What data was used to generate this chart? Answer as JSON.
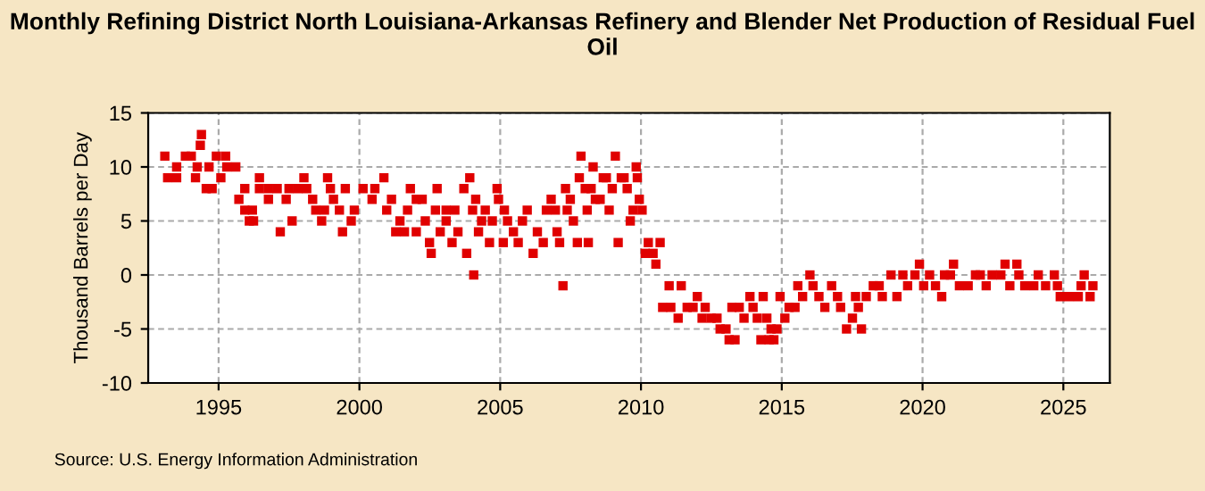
{
  "chart_data": {
    "type": "scatter",
    "title": "Monthly Refining District North Louisiana-Arkansas Refinery and Blender Net Production of Residual Fuel Oil",
    "ylabel": "Thousand Barrels per Day",
    "annotations": [
      "Source: U.S. Energy Information Administration"
    ],
    "xlim": [
      1992.5,
      2026.65
    ],
    "xticks": [
      1995,
      2000,
      2005,
      2010,
      2015,
      2020,
      2025
    ],
    "ylim": [
      -10,
      15
    ],
    "yticks": [
      -10,
      -5,
      0,
      5,
      10,
      15
    ],
    "grid": true,
    "marker": "square",
    "series": [
      {
        "color": "#e00000",
        "x": [
          1993.09,
          1993.19,
          1993.51,
          1993.51,
          1993.82,
          1994.03,
          1994.18,
          1994.24,
          1994.35,
          1994.39,
          1994.56,
          1994.66,
          1994.77,
          1994.92,
          1995.08,
          1995.25,
          1995.29,
          1995.61,
          1995.72,
          1995.93,
          1995.93,
          1996.09,
          1996.2,
          1996.24,
          1996.45,
          1996.45,
          1996.77,
          1996.77,
          1997.08,
          1997.19,
          1997.4,
          1997.5,
          1997.61,
          1997.82,
          1998.03,
          1998.13,
          1998.34,
          1998.45,
          1998.66,
          1998.76,
          1998.87,
          1998.97,
          1999.08,
          1999.29,
          1999.4,
          1999.5,
          1999.71,
          1999.82,
          2000.13,
          2000.45,
          2000.55,
          2000.87,
          2000.97,
          2001.14,
          2001.29,
          2001.44,
          2001.6,
          2001.71,
          2001.81,
          2002.02,
          2002.02,
          2002.23,
          2002.34,
          2002.49,
          2002.55,
          2002.7,
          2002.76,
          2002.87,
          2003.08,
          2003.08,
          2003.29,
          2003.39,
          2003.5,
          2003.71,
          2003.81,
          2003.92,
          2004.02,
          2004.06,
          2004.13,
          2004.23,
          2004.34,
          2004.47,
          2004.62,
          2004.72,
          2004.89,
          2004.94,
          2005.11,
          2005.15,
          2005.26,
          2005.47,
          2005.64,
          2005.79,
          2005.96,
          2006.17,
          2006.32,
          2006.53,
          2006.64,
          2006.81,
          2006.96,
          2007.02,
          2007.11,
          2007.23,
          2007.32,
          2007.38,
          2007.49,
          2007.6,
          2007.74,
          2007.81,
          2007.87,
          2008.02,
          2008.09,
          2008.13,
          2008.23,
          2008.3,
          2008.38,
          2008.55,
          2008.66,
          2008.77,
          2008.87,
          2008.98,
          2009.09,
          2009.19,
          2009.3,
          2009.4,
          2009.51,
          2009.62,
          2009.72,
          2009.83,
          2009.87,
          2009.94,
          2010.04,
          2010.15,
          2010.26,
          2010.43,
          2010.53,
          2010.68,
          2010.77,
          2011.0,
          2011.06,
          2011.32,
          2011.43,
          2011.64,
          2011.85,
          2012.0,
          2012.17,
          2012.28,
          2012.49,
          2012.7,
          2012.81,
          2013.02,
          2013.13,
          2013.23,
          2013.34,
          2013.49,
          2013.66,
          2013.87,
          2013.98,
          2014.13,
          2014.26,
          2014.34,
          2014.47,
          2014.55,
          2014.62,
          2014.72,
          2014.83,
          2014.94,
          2015.11,
          2015.26,
          2015.47,
          2015.57,
          2015.74,
          2016.0,
          2016.11,
          2016.32,
          2016.53,
          2016.77,
          2016.98,
          2017.09,
          2017.3,
          2017.51,
          2017.62,
          2017.72,
          2017.83,
          2018.0,
          2018.25,
          2018.46,
          2018.57,
          2018.88,
          2019.09,
          2019.3,
          2019.47,
          2019.73,
          2019.89,
          2020.04,
          2020.25,
          2020.46,
          2020.68,
          2020.78,
          2020.99,
          2021.1,
          2021.31,
          2021.62,
          2021.88,
          2022.05,
          2022.26,
          2022.47,
          2022.78,
          2022.93,
          2023.1,
          2023.35,
          2023.42,
          2023.63,
          2023.95,
          2024.11,
          2024.37,
          2024.68,
          2024.79,
          2024.89,
          2025.21,
          2025.53,
          2025.63,
          2025.74,
          2025.95,
          2026.05
        ],
        "values": [
          11,
          9,
          9,
          10,
          11,
          11,
          9,
          10,
          12,
          13,
          8,
          10,
          8,
          11,
          9,
          11,
          10,
          10,
          7,
          8,
          6,
          5,
          6,
          5,
          9,
          8,
          8,
          7,
          8,
          4,
          7,
          8,
          5,
          8,
          9,
          8,
          7,
          6,
          5,
          6,
          9,
          8,
          7,
          6,
          4,
          8,
          5,
          6,
          8,
          7,
          8,
          9,
          6,
          7,
          4,
          5,
          4,
          6,
          8,
          4,
          7,
          7,
          5,
          3,
          2,
          6,
          8,
          4,
          5,
          6,
          3,
          6,
          4,
          8,
          2,
          9,
          6,
          0,
          7,
          4,
          5,
          6,
          3,
          5,
          8,
          7,
          3,
          6,
          5,
          4,
          3,
          5,
          6,
          2,
          4,
          3,
          6,
          7,
          6,
          4,
          3,
          -1,
          8,
          6,
          7,
          5,
          3,
          9,
          11,
          8,
          6,
          3,
          8,
          10,
          7,
          7,
          9,
          9,
          6,
          8,
          11,
          3,
          9,
          9,
          8,
          5,
          6,
          10,
          9,
          7,
          6,
          2,
          3,
          2,
          1,
          3,
          -3,
          -1,
          -3,
          -4,
          -1,
          -3,
          -3,
          -2,
          -4,
          -3,
          -4,
          -4,
          -5,
          -5,
          -6,
          -3,
          -6,
          -3,
          -4,
          -2,
          -3,
          -4,
          -6,
          -2,
          -4,
          -6,
          -5,
          -6,
          -5,
          -2,
          -4,
          -3,
          -3,
          -1,
          -2,
          0,
          -1,
          -2,
          -3,
          -1,
          -2,
          -3,
          -5,
          -4,
          -2,
          -3,
          -5,
          -2,
          -1,
          -1,
          -2,
          0,
          -2,
          0,
          -1,
          0,
          1,
          -1,
          0,
          -1,
          -2,
          0,
          0,
          1,
          -1,
          -1,
          0,
          0,
          -1,
          0,
          0,
          1,
          -1,
          1,
          0,
          -1,
          -1,
          0,
          -1,
          0,
          -1,
          -2,
          -2,
          -2,
          -1,
          0,
          -2,
          -1
        ]
      }
    ]
  }
}
